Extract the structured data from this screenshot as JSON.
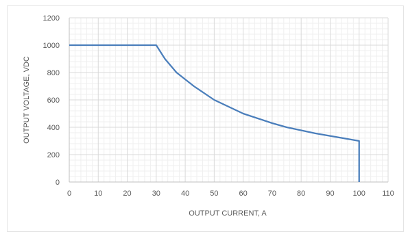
{
  "chart_data": {
    "type": "line",
    "title": "",
    "xlabel": "OUTPUT CURRENT, A",
    "ylabel": "OUTPUT VOLTAGE, VDC",
    "xlim": [
      0,
      110
    ],
    "ylim": [
      0,
      1200
    ],
    "xticks": [
      0,
      10,
      20,
      30,
      40,
      50,
      60,
      70,
      80,
      90,
      100,
      110
    ],
    "yticks": [
      0,
      200,
      400,
      600,
      800,
      1000,
      1200
    ],
    "grid": true,
    "minor_grid": true,
    "legend": "none",
    "colors": {
      "line": "#4a7ebb",
      "major_grid": "#d9d9d9",
      "minor_grid": "#efefef",
      "text": "#595959"
    },
    "series": [
      {
        "x": [
          0,
          30,
          33,
          37,
          43,
          50,
          60,
          70,
          75,
          85,
          100,
          100
        ],
        "y": [
          1000,
          1000,
          900,
          800,
          700,
          600,
          500,
          430,
          400,
          355,
          300,
          0
        ]
      }
    ]
  }
}
